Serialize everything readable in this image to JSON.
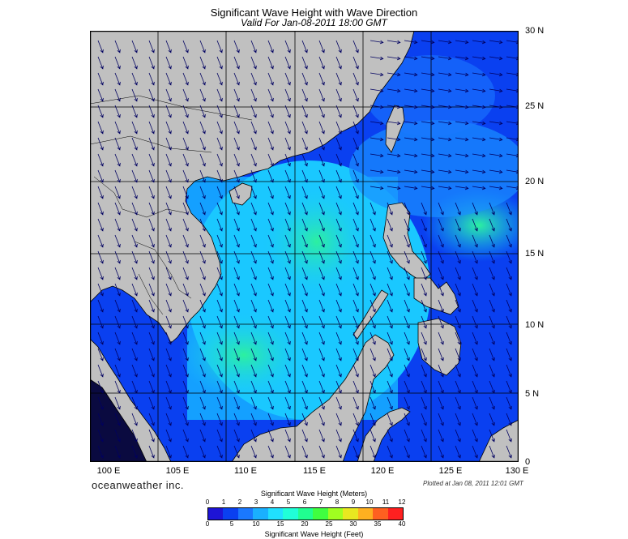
{
  "title": "Significant Wave Height with Wave Direction",
  "subtitle": "Valid For Jan-08-2011 18:00 GMT",
  "latitude_ticks": [
    "30 N",
    "25 N",
    "20 N",
    "15 N",
    "10 N",
    "5 N",
    "0"
  ],
  "longitude_ticks": [
    "100 E",
    "105 E",
    "110 E",
    "115 E",
    "120 E",
    "125 E",
    "130 E"
  ],
  "brand": "oceanweather inc.",
  "plotted_at": "Plotted at Jan 08, 2011 12:01 GMT",
  "legend": {
    "meters_title": "Significant Wave Height (Meters)",
    "meters_ticks": [
      "0",
      "1",
      "2",
      "3",
      "4",
      "5",
      "6",
      "7",
      "8",
      "9",
      "10",
      "11",
      "12"
    ],
    "feet_title": "Significant Wave Height (Feet)",
    "feet_ticks": [
      "0",
      "5",
      "10",
      "15",
      "20",
      "25",
      "30",
      "35",
      "40"
    ],
    "colors": [
      "#1e14d6",
      "#0a40f0",
      "#1a78ff",
      "#1ab0ff",
      "#20e0ff",
      "#20ffd8",
      "#20ff90",
      "#40ff40",
      "#a0ff20",
      "#e8e820",
      "#ffb020",
      "#ff6020",
      "#ff2020"
    ]
  },
  "colors": {
    "land": "#c0c0c0",
    "ocean_low": "#0a3cf0",
    "ocean_mid": "#18b8ff",
    "ocean_high": "#30ff90",
    "arrow": "#000060",
    "grid": "#000000"
  }
}
